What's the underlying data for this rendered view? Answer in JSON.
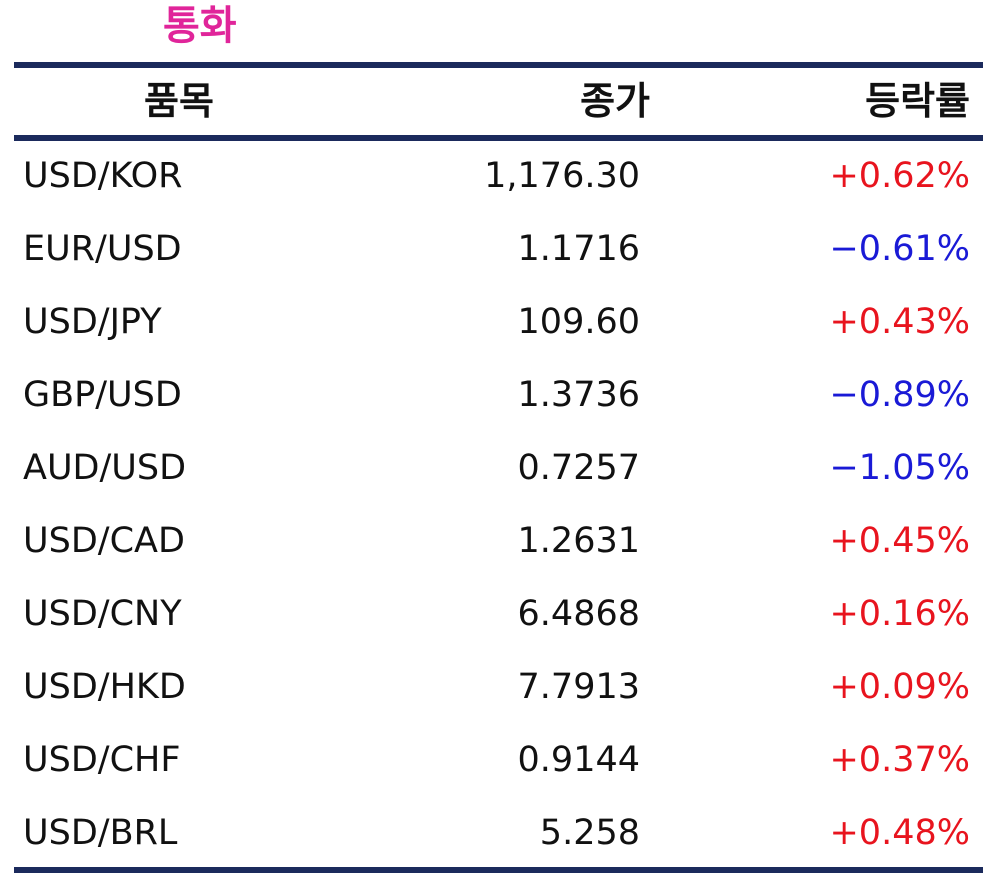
{
  "title": "통화",
  "colors": {
    "title": "#e0259a",
    "rule": "#1b2a5c",
    "up": "#e8141e",
    "down": "#1a1ad6"
  },
  "table": {
    "headers": {
      "item": "품목",
      "close": "종가",
      "change": "등락률"
    },
    "rows": [
      {
        "name": "USD/KOR",
        "close": "1,176.30",
        "change": "+0.62%",
        "direction": "up"
      },
      {
        "name": "EUR/USD",
        "close": "1.1716",
        "change": "−0.61%",
        "direction": "down"
      },
      {
        "name": "USD/JPY",
        "close": "109.60",
        "change": "+0.43%",
        "direction": "up"
      },
      {
        "name": "GBP/USD",
        "close": "1.3736",
        "change": "−0.89%",
        "direction": "down"
      },
      {
        "name": "AUD/USD",
        "close": "0.7257",
        "change": "−1.05%",
        "direction": "down"
      },
      {
        "name": "USD/CAD",
        "close": "1.2631",
        "change": "+0.45%",
        "direction": "up"
      },
      {
        "name": "USD/CNY",
        "close": "6.4868",
        "change": "+0.16%",
        "direction": "up"
      },
      {
        "name": "USD/HKD",
        "close": "7.7913",
        "change": "+0.09%",
        "direction": "up"
      },
      {
        "name": "USD/CHF",
        "close": "0.9144",
        "change": "+0.37%",
        "direction": "up"
      },
      {
        "name": "USD/BRL",
        "close": "5.258",
        "change": "+0.48%",
        "direction": "up"
      }
    ]
  }
}
